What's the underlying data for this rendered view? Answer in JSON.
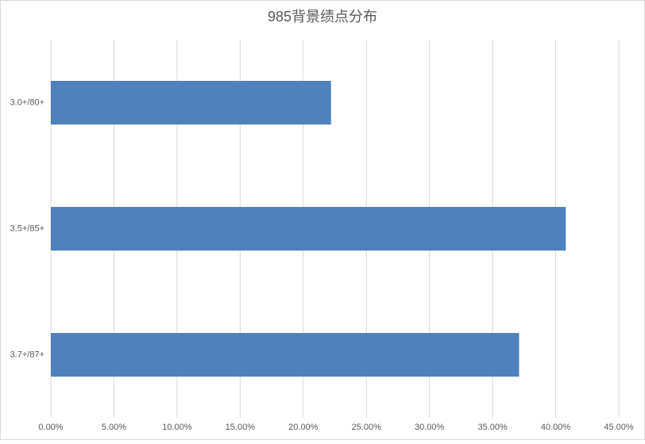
{
  "chart_data": {
    "type": "bar",
    "orientation": "horizontal",
    "title": "985背景绩点分布",
    "categories": [
      "3.0+/80+",
      "3.5+/85+",
      "3.7+/87+"
    ],
    "values": [
      22.2,
      40.8,
      37.1
    ],
    "color": "#4f81bd",
    "xlim": [
      0,
      45
    ],
    "xticks": [
      {
        "value": 0,
        "label": "0.00%"
      },
      {
        "value": 5,
        "label": "5.00%"
      },
      {
        "value": 10,
        "label": "10.00%"
      },
      {
        "value": 15,
        "label": "15.00%"
      },
      {
        "value": 20,
        "label": "20.00%"
      },
      {
        "value": 25,
        "label": "25.00%"
      },
      {
        "value": 30,
        "label": "30.00%"
      },
      {
        "value": 35,
        "label": "35.00%"
      },
      {
        "value": 40,
        "label": "40.00%"
      },
      {
        "value": 45,
        "label": "45.00%"
      }
    ],
    "grid": true
  }
}
